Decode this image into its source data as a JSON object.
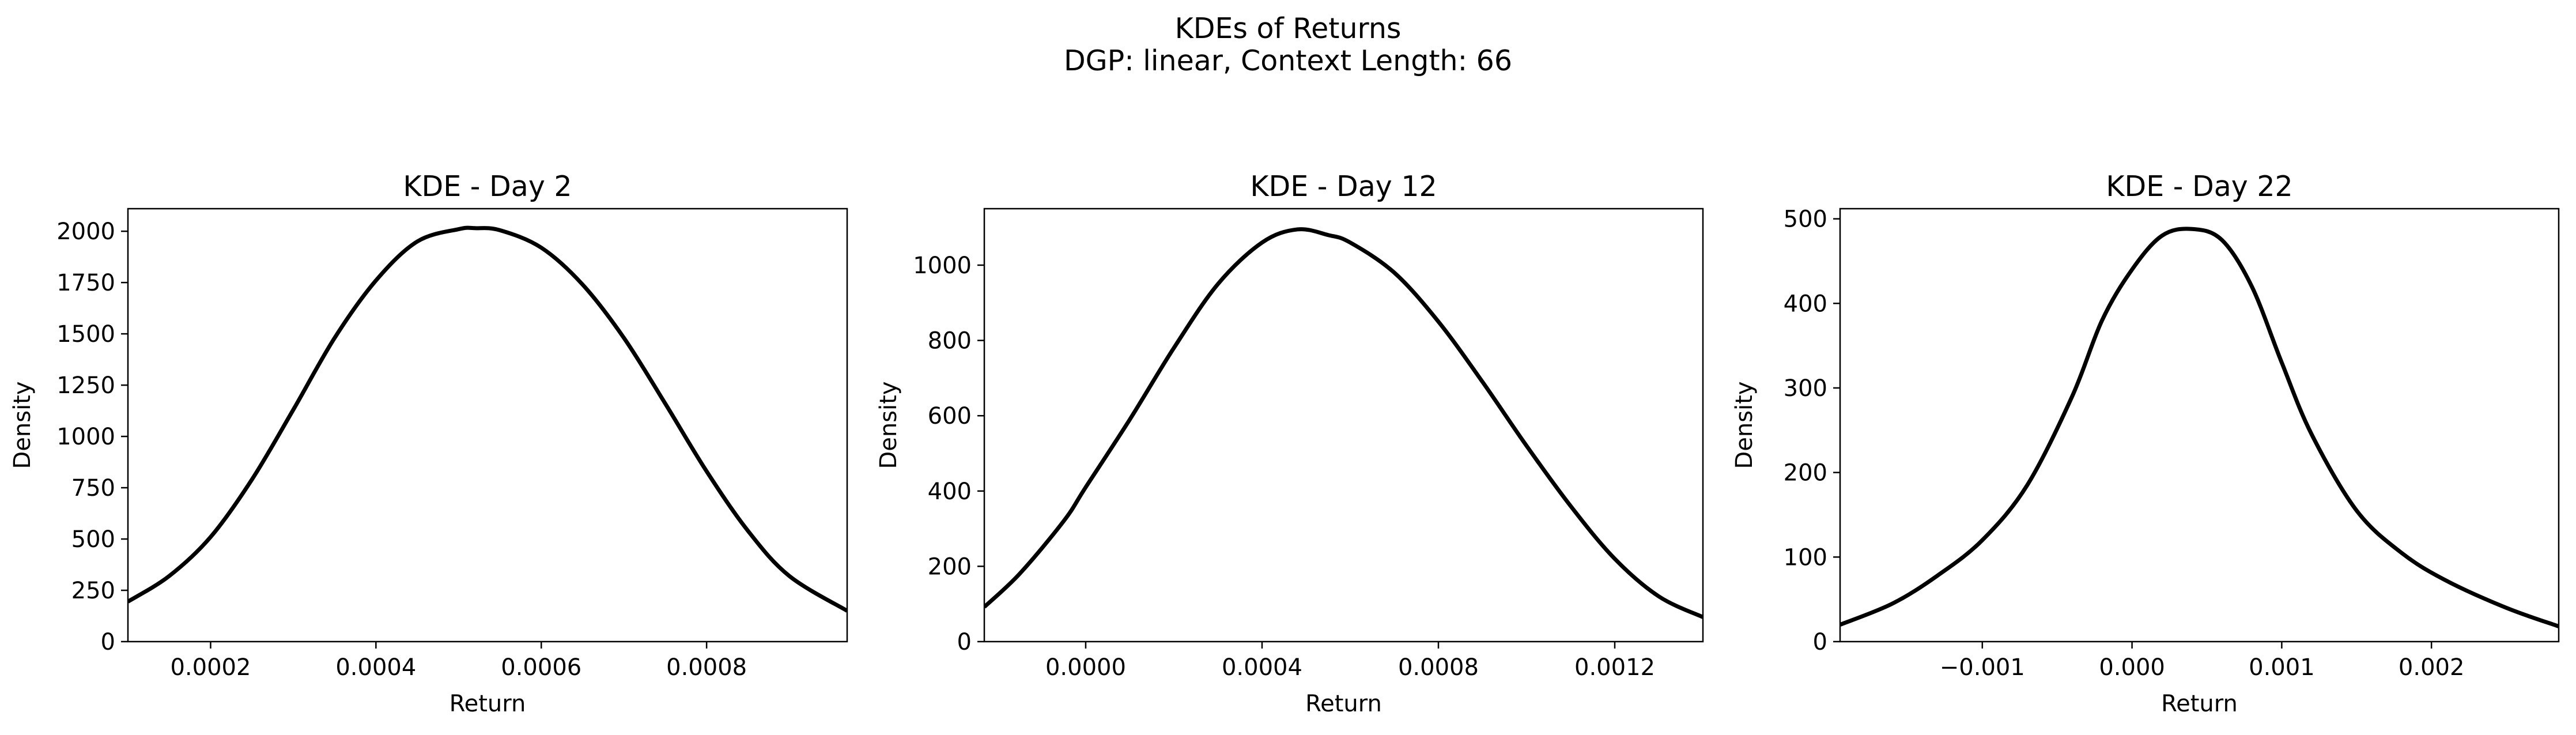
{
  "figure": {
    "title_line1": "KDEs of Returns",
    "title_line2": "DGP: linear, Context Length: 66"
  },
  "style": {
    "line_color": "#000000",
    "background": "#ffffff"
  },
  "chart_data": [
    {
      "type": "line",
      "title": "KDE - Day 2",
      "xlabel": "Return",
      "ylabel": "Density",
      "xlim": [
        0.0001,
        0.00097
      ],
      "ylim": [
        0,
        2110
      ],
      "xticks": [
        0.0002,
        0.0004,
        0.0006,
        0.0008
      ],
      "xtick_labels": [
        "0.0002",
        "0.0004",
        "0.0006",
        "0.0008"
      ],
      "yticks": [
        0,
        250,
        500,
        750,
        1000,
        1250,
        1500,
        1750,
        2000
      ],
      "ytick_labels": [
        "0",
        "250",
        "500",
        "750",
        "1000",
        "1250",
        "1500",
        "1750",
        "2000"
      ],
      "series": [
        {
          "x": [
            0.0001,
            0.00015,
            0.0002,
            0.00025,
            0.0003,
            0.00035,
            0.0004,
            0.00045,
            0.0005,
            0.00052,
            0.00055,
            0.0006,
            0.00065,
            0.0007,
            0.00075,
            0.0008,
            0.00085,
            0.0009,
            0.00097
          ],
          "y": [
            195,
            320,
            510,
            790,
            1130,
            1480,
            1760,
            1950,
            2010,
            2015,
            2005,
            1920,
            1740,
            1480,
            1160,
            830,
            540,
            320,
            150
          ]
        }
      ]
    },
    {
      "type": "line",
      "title": "KDE - Day 12",
      "xlabel": "Return",
      "ylabel": "Density",
      "xlim": [
        -0.00023,
        0.0014
      ],
      "ylim": [
        0,
        1150
      ],
      "xticks": [
        0.0,
        0.0004,
        0.0008,
        0.0012
      ],
      "xtick_labels": [
        "0.0000",
        "0.0004",
        "0.0008",
        "0.0012"
      ],
      "yticks": [
        0,
        200,
        400,
        600,
        800,
        1000
      ],
      "ytick_labels": [
        "0",
        "200",
        "400",
        "600",
        "800",
        "1000"
      ],
      "series": [
        {
          "x": [
            -0.00023,
            -0.00015,
            -5e-05,
            0.0,
            0.0001,
            0.0002,
            0.0003,
            0.0004,
            0.00048,
            0.00055,
            0.0006,
            0.0007,
            0.0008,
            0.0009,
            0.001,
            0.0011,
            0.0012,
            0.0013,
            0.0014
          ],
          "y": [
            92,
            180,
            320,
            410,
            590,
            780,
            950,
            1060,
            1095,
            1080,
            1060,
            980,
            850,
            690,
            520,
            360,
            220,
            120,
            65
          ]
        }
      ]
    },
    {
      "type": "line",
      "title": "KDE - Day 22",
      "xlabel": "Return",
      "ylabel": "Density",
      "xlim": [
        -0.00195,
        0.00285
      ],
      "ylim": [
        0,
        512
      ],
      "xticks": [
        -0.001,
        0.0,
        0.001,
        0.002
      ],
      "xtick_labels": [
        "−0.001",
        "0.000",
        "0.001",
        "0.002"
      ],
      "yticks": [
        0,
        100,
        200,
        300,
        400,
        500
      ],
      "ytick_labels": [
        "0",
        "100",
        "200",
        "300",
        "400",
        "500"
      ],
      "series": [
        {
          "x": [
            -0.00195,
            -0.0016,
            -0.0013,
            -0.001,
            -0.0007,
            -0.0004,
            -0.0002,
            0.0,
            0.0002,
            0.0004,
            0.0006,
            0.0008,
            0.001,
            0.0012,
            0.0015,
            0.0018,
            0.0021,
            0.0025,
            0.00285
          ],
          "y": [
            20,
            45,
            78,
            120,
            185,
            290,
            380,
            440,
            480,
            488,
            475,
            420,
            330,
            245,
            155,
            105,
            72,
            40,
            18
          ]
        }
      ]
    }
  ]
}
